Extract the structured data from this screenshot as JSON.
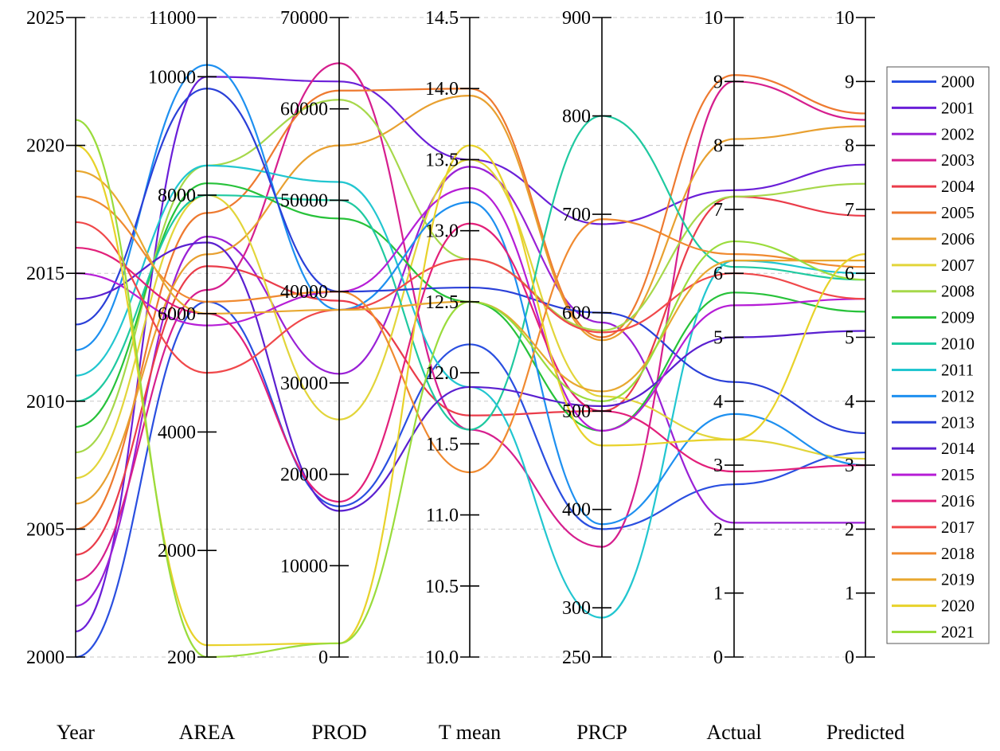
{
  "chart_data": {
    "type": "parallel-coordinates",
    "title": "",
    "axes": [
      {
        "name": "Year",
        "range": [
          2000,
          2025
        ],
        "ticks": [
          2000,
          2005,
          2010,
          2015,
          2020,
          2025
        ],
        "tick_labels": [
          "2000",
          "2005",
          "2010",
          "2015",
          "2020",
          "2025"
        ],
        "label_side": "left"
      },
      {
        "name": "AREA",
        "range": [
          200,
          11000
        ],
        "ticks": [
          200,
          2000,
          4000,
          6000,
          8000,
          10000,
          11000
        ],
        "tick_labels": [
          "200",
          "2000",
          "4000",
          "6000",
          "8000",
          "10000",
          "11000"
        ],
        "label_side": "left"
      },
      {
        "name": "PROD",
        "range": [
          0,
          70000
        ],
        "ticks": [
          0,
          10000,
          20000,
          30000,
          40000,
          50000,
          60000,
          70000
        ],
        "tick_labels": [
          "0",
          "10000",
          "20000",
          "30000",
          "40000",
          "50000",
          "60000",
          "70000"
        ],
        "label_side": "left"
      },
      {
        "name": "T mean",
        "range": [
          10.0,
          14.5
        ],
        "ticks": [
          10.0,
          10.5,
          11.0,
          11.5,
          12.0,
          12.5,
          13.0,
          13.5,
          14.0,
          14.5
        ],
        "tick_labels": [
          "10.0",
          "10.5",
          "11.0",
          "11.5",
          "12.0",
          "12.5",
          "13.0",
          "13.5",
          "14.0",
          "14.5"
        ],
        "label_side": "left"
      },
      {
        "name": "PRCP",
        "range": [
          250,
          900
        ],
        "ticks": [
          250,
          300,
          400,
          500,
          600,
          700,
          800,
          900
        ],
        "tick_labels": [
          "250",
          "300",
          "400",
          "500",
          "600",
          "700",
          "800",
          "900"
        ],
        "label_side": "left"
      },
      {
        "name": "Actual",
        "range": [
          0,
          10
        ],
        "ticks": [
          0,
          1,
          2,
          3,
          4,
          5,
          6,
          7,
          8,
          9,
          10
        ],
        "tick_labels": [
          "0",
          "1",
          "2",
          "3",
          "4",
          "5",
          "6",
          "7",
          "8",
          "9",
          "10"
        ],
        "label_side": "left"
      },
      {
        "name": "Predicted",
        "range": [
          0,
          10
        ],
        "ticks": [
          0,
          1,
          2,
          3,
          4,
          5,
          6,
          7,
          8,
          9,
          10
        ],
        "tick_labels": [
          "0",
          "1",
          "2",
          "3",
          "4",
          "5",
          "6",
          "7",
          "8",
          "9",
          "10"
        ],
        "label_side": "left"
      }
    ],
    "series": [
      {
        "name": "2000",
        "color": "#2a4fe0",
        "values": [
          2000,
          6200,
          16500,
          12.2,
          380,
          2.7,
          3.2
        ]
      },
      {
        "name": "2001",
        "color": "#6a1fd8",
        "values": [
          2001,
          10000,
          63000,
          13.5,
          690,
          7.3,
          7.7
        ]
      },
      {
        "name": "2002",
        "color": "#9a21d6",
        "values": [
          2002,
          7300,
          31000,
          13.45,
          590,
          2.1,
          2.1
        ]
      },
      {
        "name": "2003",
        "color": "#d61f8e",
        "values": [
          2003,
          6400,
          65000,
          11.6,
          362,
          9.0,
          8.4
        ]
      },
      {
        "name": "2004",
        "color": "#ea3c4a",
        "values": [
          2004,
          6800,
          39000,
          11.7,
          500,
          7.2,
          6.9
        ]
      },
      {
        "name": "2005",
        "color": "#ee7a30",
        "values": [
          2005,
          7700,
          62000,
          14.0,
          575,
          9.1,
          8.5
        ]
      },
      {
        "name": "2006",
        "color": "#e8a030",
        "values": [
          2006,
          7000,
          56000,
          13.95,
          572,
          8.1,
          8.3
        ]
      },
      {
        "name": "2007",
        "color": "#e2d53a",
        "values": [
          2007,
          8000,
          26000,
          13.5,
          515,
          3.4,
          3.1
        ]
      },
      {
        "name": "2008",
        "color": "#a6d84a",
        "values": [
          2008,
          8500,
          61000,
          12.8,
          582,
          7.2,
          7.4
        ]
      },
      {
        "name": "2009",
        "color": "#27c23a",
        "values": [
          2009,
          8200,
          48000,
          12.5,
          480,
          5.7,
          5.4
        ]
      },
      {
        "name": "2010",
        "color": "#1fc9a0",
        "values": [
          2010,
          8000,
          50000,
          11.6,
          800,
          6.1,
          5.9
        ]
      },
      {
        "name": "2011",
        "color": "#22c6d0",
        "values": [
          2011,
          8500,
          52000,
          11.9,
          290,
          6.2,
          6.0
        ]
      },
      {
        "name": "2012",
        "color": "#1e90f0",
        "values": [
          2012,
          10200,
          38000,
          13.2,
          385,
          3.8,
          3.0
        ]
      },
      {
        "name": "2013",
        "color": "#2a40d8",
        "values": [
          2013,
          9800,
          40000,
          12.6,
          600,
          4.3,
          3.5
        ]
      },
      {
        "name": "2014",
        "color": "#5a20d0",
        "values": [
          2014,
          7200,
          16000,
          11.9,
          505,
          5.0,
          5.1
        ]
      },
      {
        "name": "2015",
        "color": "#b61ed6",
        "values": [
          2015,
          5800,
          40000,
          13.3,
          480,
          5.5,
          5.6
        ]
      },
      {
        "name": "2016",
        "color": "#e2207a",
        "values": [
          2016,
          6000,
          17000,
          13.05,
          500,
          2.9,
          3.0
        ]
      },
      {
        "name": "2017",
        "color": "#f0484a",
        "values": [
          2017,
          5000,
          38000,
          12.8,
          580,
          6.0,
          5.6
        ]
      },
      {
        "name": "2018",
        "color": "#f08a30",
        "values": [
          2018,
          6200,
          40000,
          11.3,
          695,
          6.3,
          6.1
        ]
      },
      {
        "name": "2019",
        "color": "#e8a830",
        "values": [
          2019,
          6000,
          38000,
          12.5,
          520,
          6.2,
          6.2
        ]
      },
      {
        "name": "2020",
        "color": "#e8d22a",
        "values": [
          2020,
          400,
          1500,
          13.6,
          465,
          3.4,
          6.3
        ]
      },
      {
        "name": "2021",
        "color": "#9adc3c",
        "values": [
          2021,
          200,
          1500,
          12.5,
          510,
          6.5,
          5.9
        ]
      }
    ],
    "grid": "dashed horizontal at Year-axis ticks",
    "legend": "right"
  }
}
